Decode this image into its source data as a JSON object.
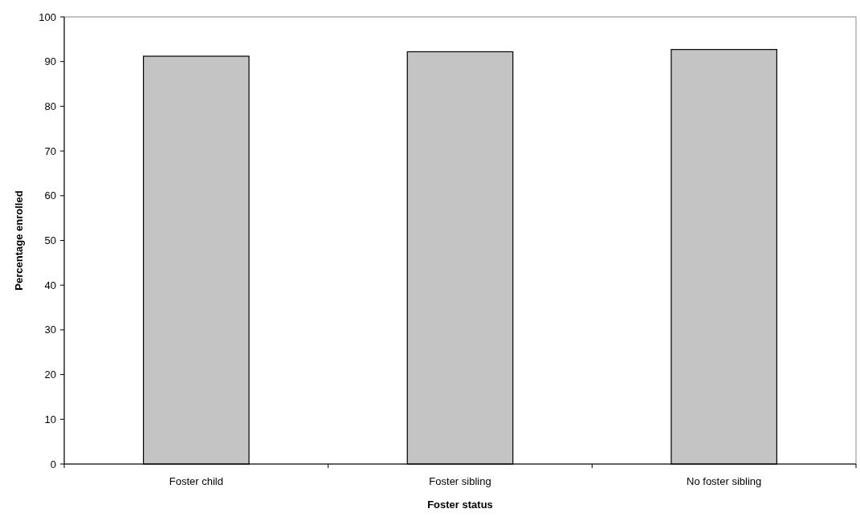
{
  "chart_data": {
    "type": "bar",
    "xlabel": "Foster status",
    "ylabel": "Percentage enrolled",
    "categories": [
      "Foster child",
      "Foster sibling",
      "No foster sibling"
    ],
    "values": [
      91.2,
      92.2,
      92.7
    ],
    "color": "#c4c4c4",
    "ylim": [
      0,
      100
    ],
    "yticks": [
      0,
      10,
      20,
      30,
      40,
      50,
      60,
      70,
      80,
      90,
      100
    ],
    "grid": false
  }
}
